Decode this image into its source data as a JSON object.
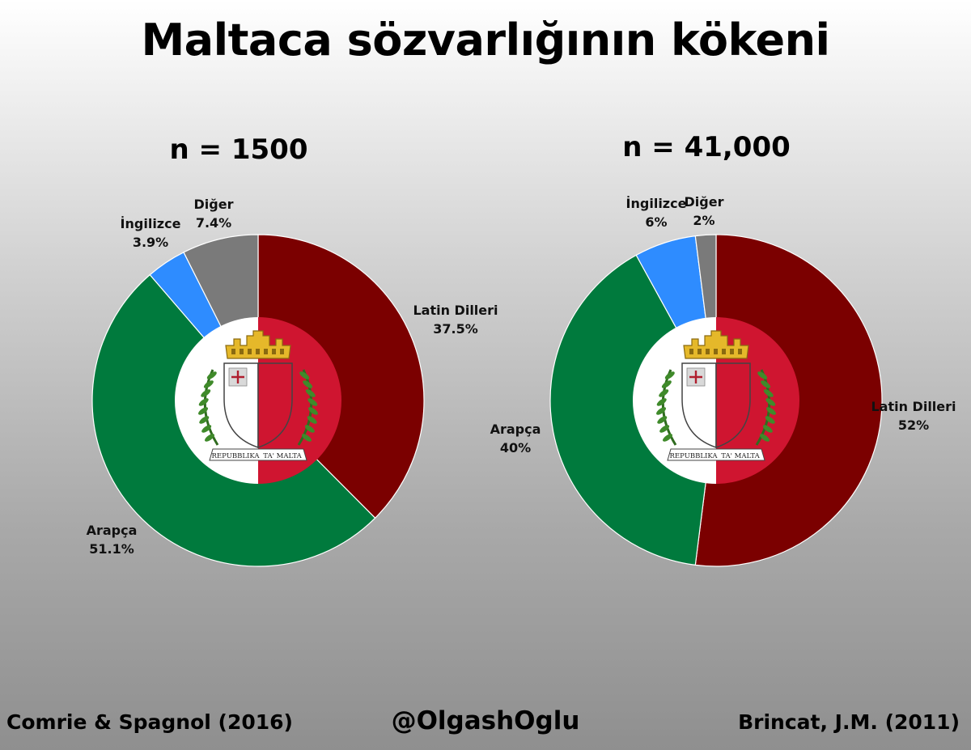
{
  "title": "Maltaca sözvarlığının kökeni",
  "chart_data": [
    {
      "type": "pie",
      "title": "n = 1500",
      "series": [
        {
          "name": "Latin Dilleri",
          "value": 37.5,
          "label": "37.5%",
          "color": "#7b0000"
        },
        {
          "name": "Arapça",
          "value": 51.1,
          "label": "51.1%",
          "color": "#007a3d"
        },
        {
          "name": "İngilizce",
          "value": 3.9,
          "label": "3.9%",
          "color": "#2e8cff"
        },
        {
          "name": "Diğer",
          "value": 7.4,
          "label": "7.4%",
          "color": "#7a7a7a"
        }
      ],
      "inner_disc_colors": [
        "#ffffff",
        "#cf1530"
      ]
    },
    {
      "type": "pie",
      "title": "n = 41,000",
      "series": [
        {
          "name": "Latin Dilleri",
          "value": 52,
          "label": "52%",
          "color": "#7b0000"
        },
        {
          "name": "Arapça",
          "value": 40,
          "label": "40%",
          "color": "#007a3d"
        },
        {
          "name": "İngilizce",
          "value": 6,
          "label": "6%",
          "color": "#2e8cff"
        },
        {
          "name": "Diğer",
          "value": 2,
          "label": "2%",
          "color": "#7a7a7a"
        }
      ],
      "inner_disc_colors": [
        "#ffffff",
        "#cf1530"
      ]
    }
  ],
  "emblem": {
    "banner_left": "REPUBBLIKA",
    "banner_right": "TA' MALTA"
  },
  "footer": {
    "left": "Comrie & Spagnol (2016)",
    "center": "@OlgashOglu",
    "right": "Brincat, J.M. (2011)"
  }
}
